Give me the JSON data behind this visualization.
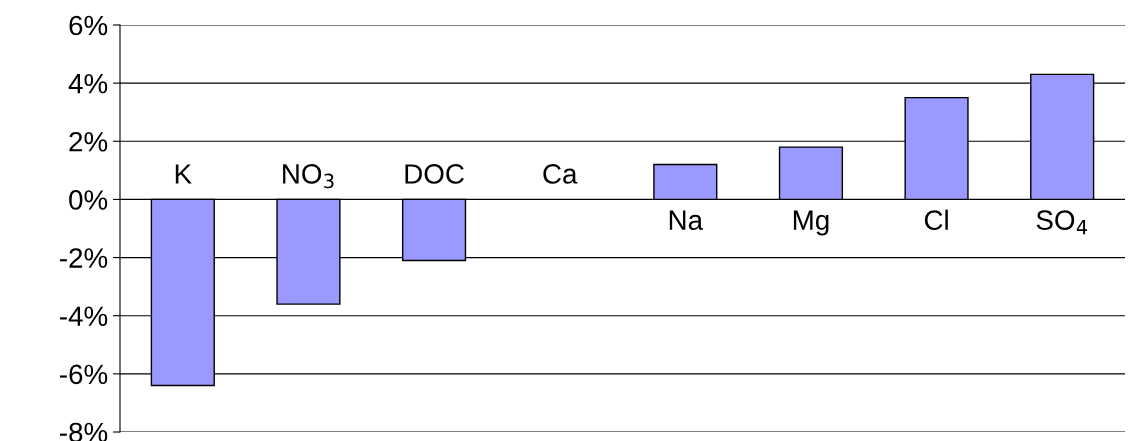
{
  "chart_data": {
    "type": "bar",
    "categories": [
      "K",
      "NO$_{3}$",
      "DOC",
      "Ca",
      "Na",
      "Mg",
      "Cl",
      "SO$_{4}$"
    ],
    "values": [
      -6.4,
      -3.6,
      -2.1,
      null,
      1.2,
      1.8,
      3.5,
      4.3
    ],
    "color": "#9999ff",
    "ylim": [
      -8,
      6
    ],
    "yticks": [
      {
        "value": -8,
        "label": "-8%"
      },
      {
        "value": -6,
        "label": "-6%"
      },
      {
        "value": -4,
        "label": "-4%"
      },
      {
        "value": -2,
        "label": "-2%"
      },
      {
        "value": 0,
        "label": "0%"
      },
      {
        "value": 2,
        "label": "2%"
      },
      {
        "value": 4,
        "label": "4%"
      },
      {
        "value": 6,
        "label": "6%"
      }
    ],
    "grid": "y"
  }
}
